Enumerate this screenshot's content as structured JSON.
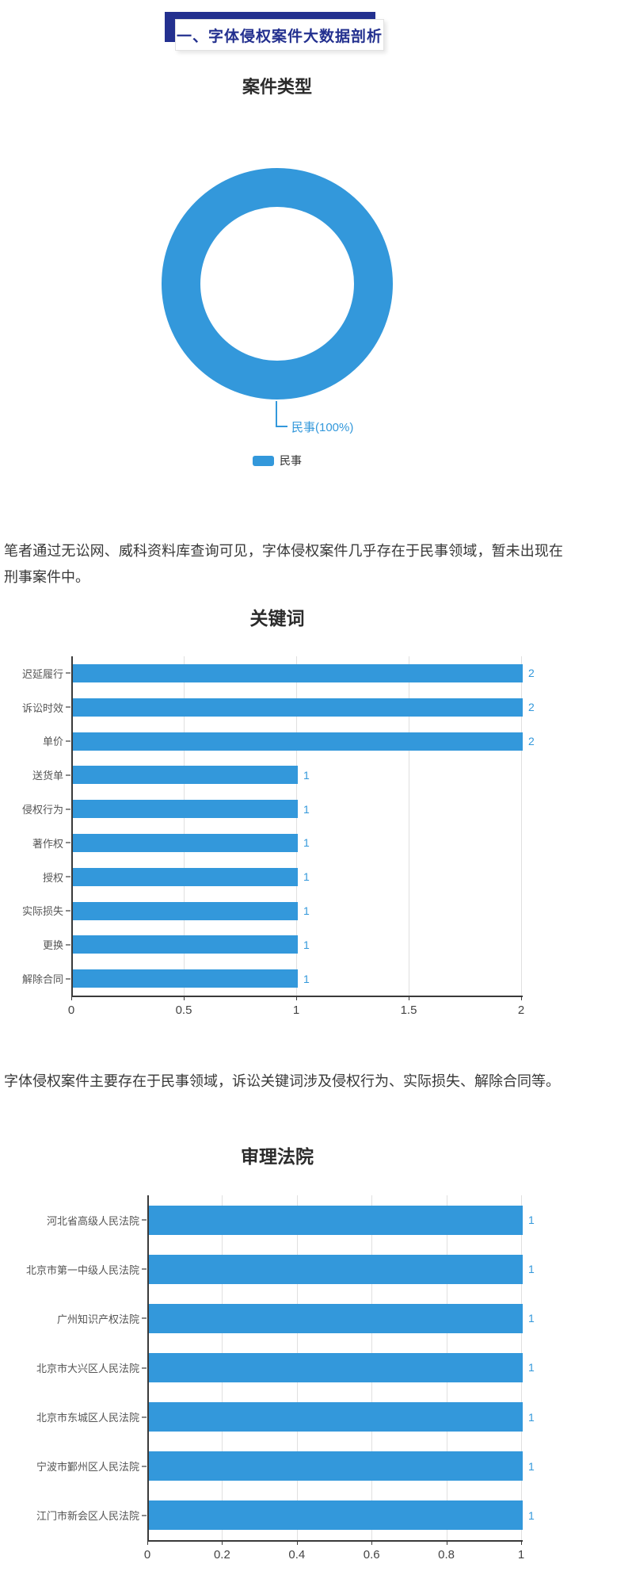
{
  "banner": {
    "title": "一、字体侵权案件大数据剖析"
  },
  "paragraphs": {
    "p1": "笔者通过无讼网、威科资料库查询可见，字体侵权案件几乎存在于民事领域，暂未出现在刑事案件中。",
    "p2": "字体侵权案件主要存在于民事领域，诉讼关键词涉及侵权行为、实际损失、解除合同等。"
  },
  "colors": {
    "accent_blue": "#3398DB",
    "banner_navy": "#23308F",
    "axis_dark": "#3a3a3a",
    "gridline_gray": "#e0e0e0"
  },
  "chart_data": [
    {
      "type": "pie",
      "style": "donut",
      "title": "案件类型",
      "labels": [
        "民事"
      ],
      "values": [
        100
      ],
      "unit": "percent",
      "callout": "民事(100%)",
      "legend": [
        "民事"
      ],
      "colors": [
        "#3398DB"
      ],
      "legend_position": "bottom"
    },
    {
      "type": "bar",
      "orientation": "horizontal",
      "title": "关键词",
      "categories": [
        "迟延履行",
        "诉讼时效",
        "单价",
        "送货单",
        "侵权行为",
        "著作权",
        "授权",
        "实际损失",
        "更换",
        "解除合同"
      ],
      "values": [
        2,
        2,
        2,
        1,
        1,
        1,
        1,
        1,
        1,
        1
      ],
      "xlim": [
        0,
        2
      ],
      "xticks": [
        0,
        0.5,
        1,
        1.5,
        2
      ],
      "grid": true,
      "bar_color": "#3398DB",
      "value_labels": true
    },
    {
      "type": "bar",
      "orientation": "horizontal",
      "title": "审理法院",
      "categories": [
        "河北省高级人民法院",
        "北京市第一中级人民法院",
        "广州知识产权法院",
        "北京市大兴区人民法院",
        "北京市东城区人民法院",
        "宁波市鄞州区人民法院",
        "江门市新会区人民法院"
      ],
      "values": [
        1,
        1,
        1,
        1,
        1,
        1,
        1
      ],
      "xlim": [
        0,
        1
      ],
      "xticks": [
        0,
        0.2,
        0.4,
        0.6,
        0.8,
        1
      ],
      "grid": true,
      "bar_color": "#3398DB",
      "value_labels": true
    }
  ]
}
